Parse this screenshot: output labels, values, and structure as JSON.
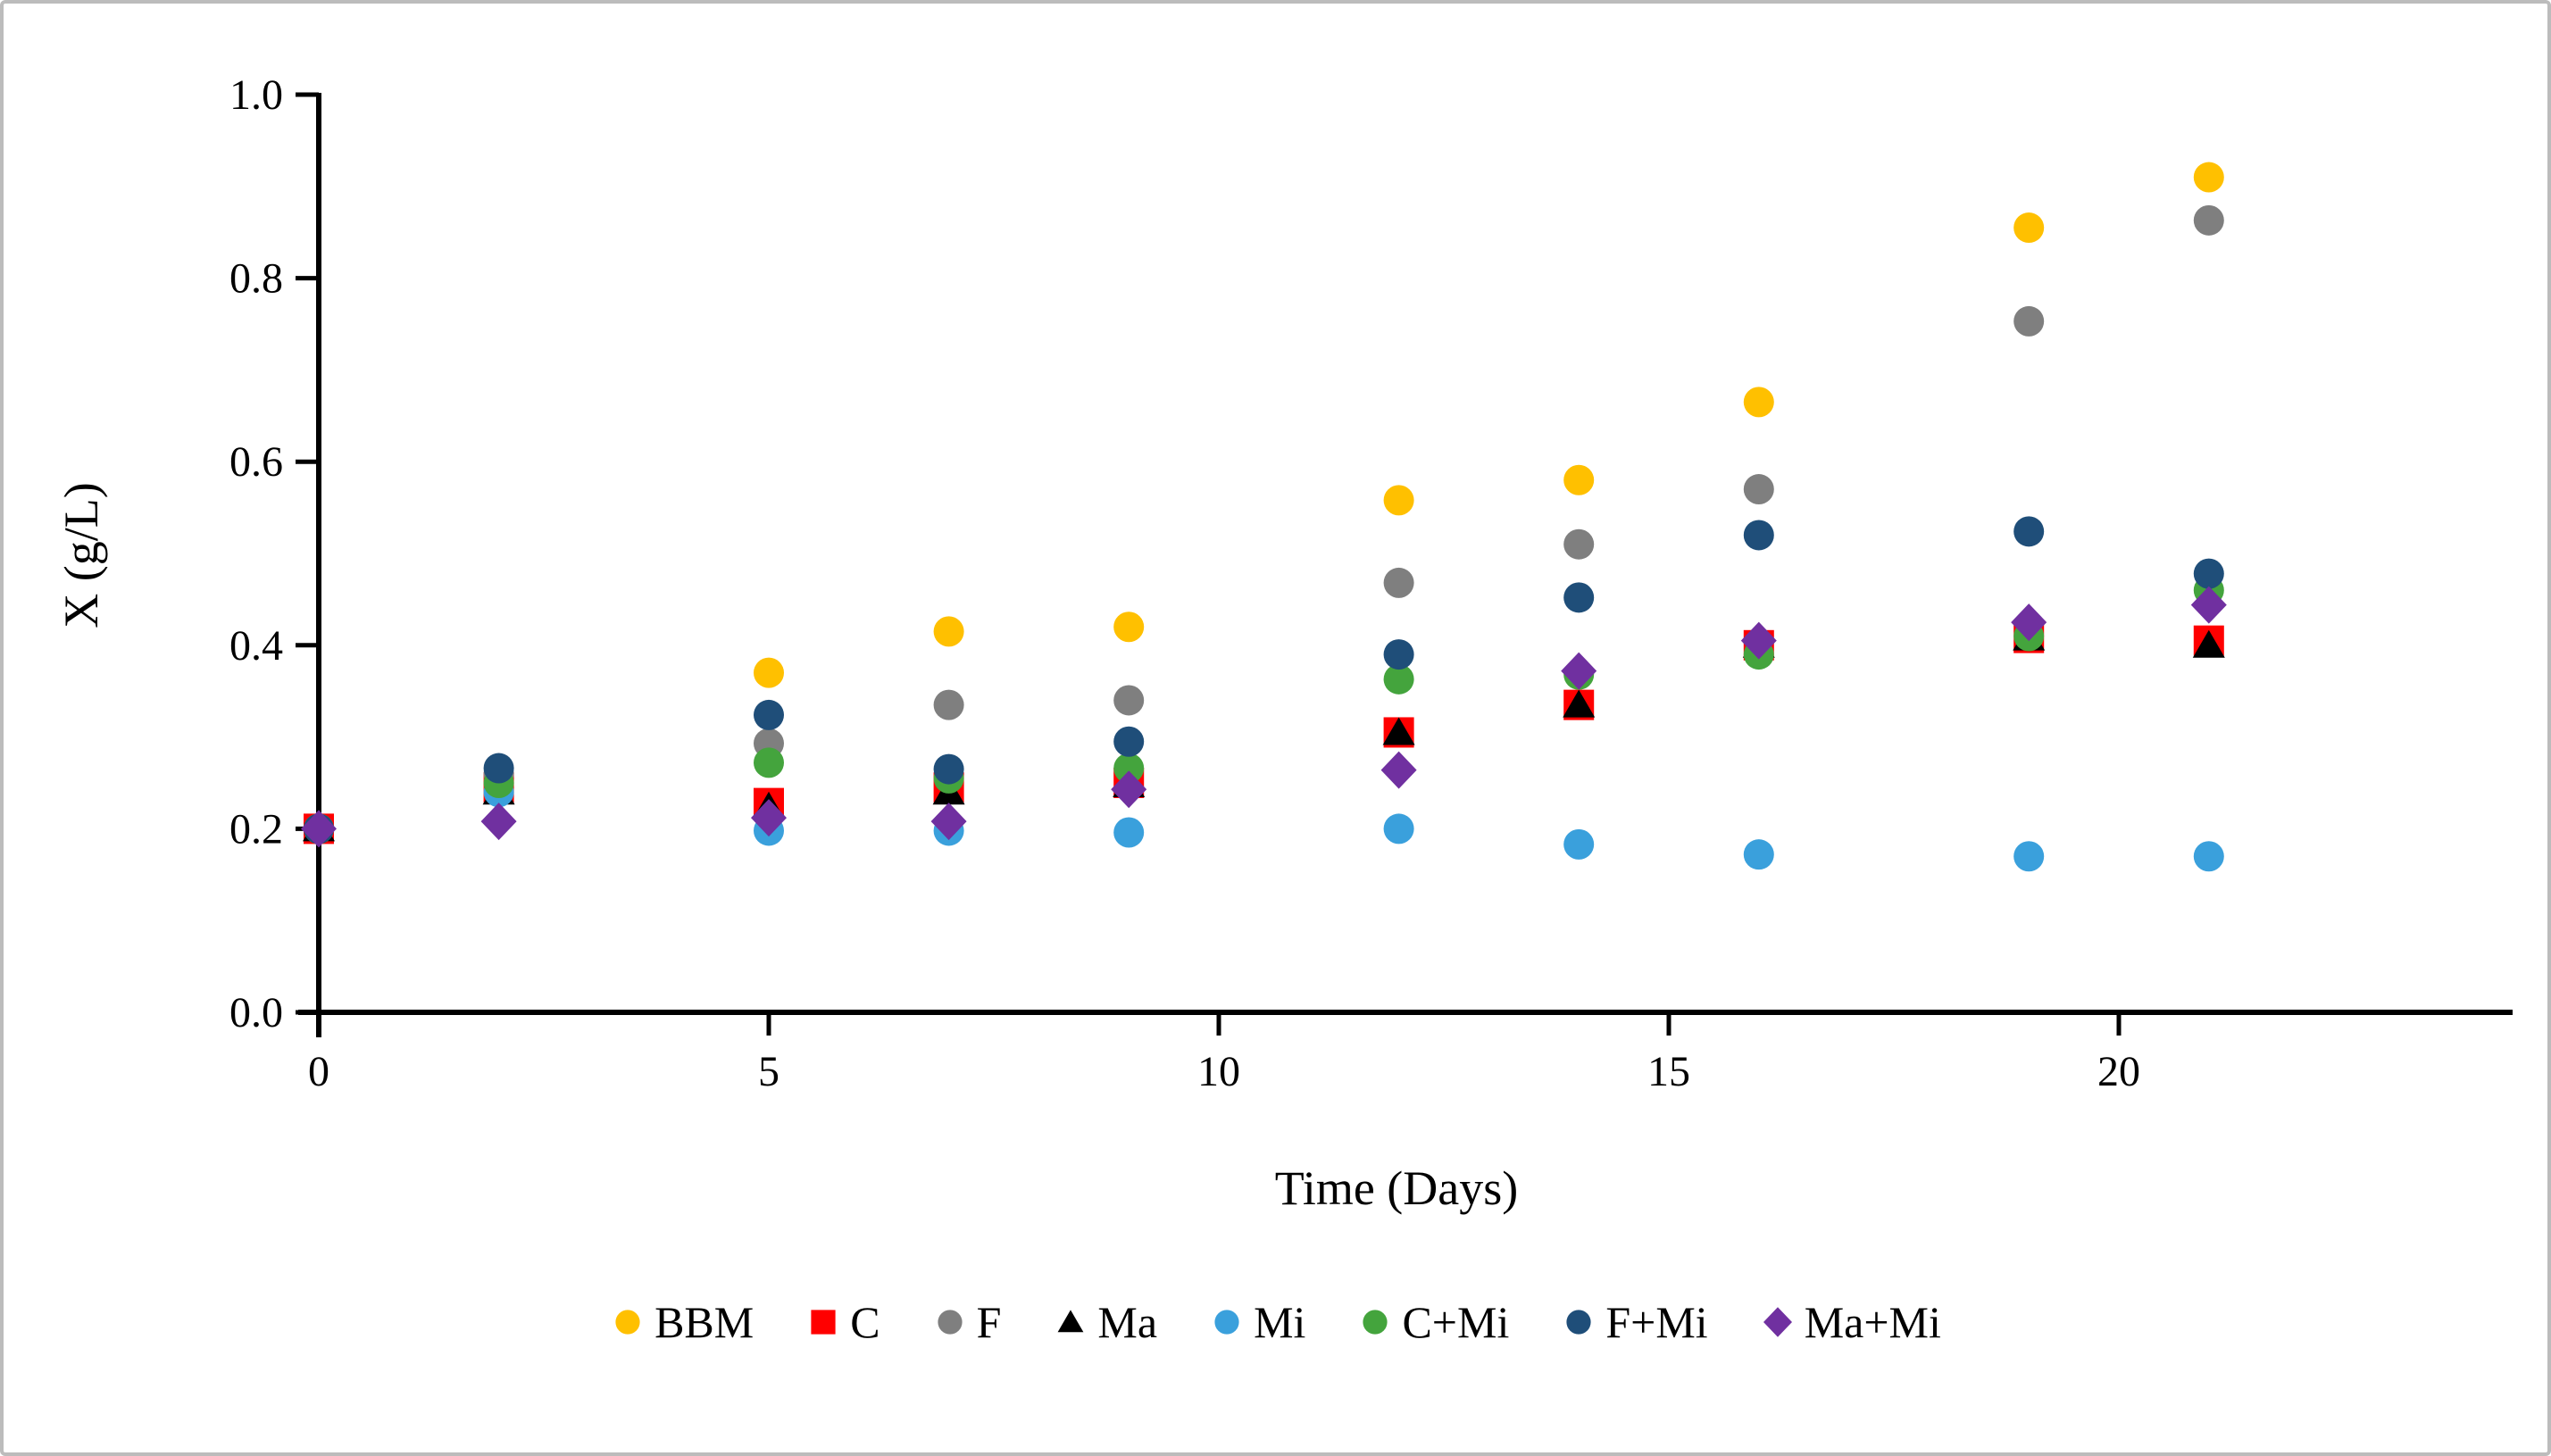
{
  "figure": {
    "background": "#ffffff",
    "border_color": "#bcbcbc"
  },
  "chart_data": {
    "type": "scatter",
    "title": "",
    "xlabel": "Time (Days)",
    "ylabel": "X (g/L)",
    "grid": false,
    "legend_position": "bottom-center",
    "xlim": [
      0,
      24
    ],
    "ylim": [
      0.0,
      1.0
    ],
    "x_ticks": [
      0,
      5,
      10,
      15,
      20
    ],
    "y_ticks": [
      "0.0",
      "0.2",
      "0.4",
      "0.6",
      "0.8",
      "1.0"
    ],
    "x": [
      0,
      2,
      5,
      7,
      9,
      12,
      14,
      16,
      19,
      21
    ],
    "series": [
      {
        "name": "BBM",
        "marker": "circle",
        "color": "#FFC000",
        "values": [
          0.2,
          0.25,
          0.37,
          0.415,
          0.42,
          0.558,
          0.58,
          0.665,
          0.855,
          0.91
        ]
      },
      {
        "name": "C",
        "marker": "square",
        "color": "#FF0000",
        "values": [
          0.2,
          0.245,
          0.228,
          0.245,
          0.25,
          0.305,
          0.335,
          0.4,
          0.408,
          0.405
        ]
      },
      {
        "name": "F",
        "marker": "circle",
        "color": "#7F7F7F",
        "values": [
          0.2,
          0.26,
          0.293,
          0.335,
          0.34,
          0.468,
          0.51,
          0.57,
          0.753,
          0.863
        ]
      },
      {
        "name": "Ma",
        "marker": "triangle",
        "color": "#000000",
        "values": [
          0.2,
          0.24,
          0.224,
          0.24,
          0.248,
          0.305,
          0.335,
          0.4,
          0.408,
          0.4
        ]
      },
      {
        "name": "Mi",
        "marker": "circle",
        "color": "#3AA0DC",
        "values": [
          0.2,
          0.24,
          0.198,
          0.198,
          0.196,
          0.2,
          0.183,
          0.172,
          0.17,
          0.17
        ]
      },
      {
        "name": "C+Mi",
        "marker": "circle",
        "color": "#44A43D",
        "values": [
          0.2,
          0.25,
          0.272,
          0.255,
          0.266,
          0.363,
          0.368,
          0.39,
          0.41,
          0.46
        ]
      },
      {
        "name": "F+Mi",
        "marker": "circle",
        "color": "#1F4E79",
        "values": [
          0.2,
          0.266,
          0.324,
          0.265,
          0.295,
          0.39,
          0.452,
          0.52,
          0.524,
          0.478
        ]
      },
      {
        "name": "Ma+Mi",
        "marker": "diamond",
        "color": "#7030A0",
        "values": [
          0.2,
          0.208,
          0.212,
          0.208,
          0.243,
          0.264,
          0.372,
          0.405,
          0.425,
          0.444
        ]
      }
    ]
  }
}
